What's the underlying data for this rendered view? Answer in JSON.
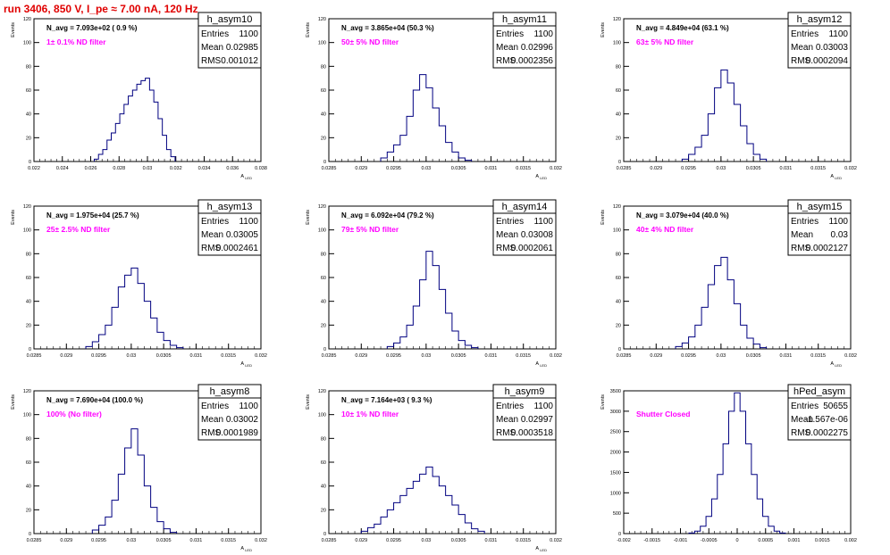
{
  "header": {
    "title": "run 3406,   850 V, I_pe ≈ 7.00 nA, 120 Hz"
  },
  "colors": {
    "title": "#e00000",
    "histogram": "#000080",
    "annotation": "#ff00ff",
    "axis": "#000000"
  },
  "chart_data": [
    {
      "type": "histogram",
      "name": "h_asym10",
      "nav_text": "N_avg = 7.093e+02 ( 0.9 %)",
      "annotation": "1± 0.1% ND filter",
      "stats": [
        {
          "label": "Entries",
          "value": "1100"
        },
        {
          "label": "Mean",
          "value": "0.02985"
        },
        {
          "label": "RMS",
          "value": "0.001012"
        }
      ],
      "xlabel": "A_LED",
      "ylabel": "Events",
      "xlim": [
        0.022,
        0.038
      ],
      "ylim": [
        0,
        120
      ],
      "xticks": [
        "0.022",
        "0.024",
        "0.026",
        "0.028",
        "0.03",
        "0.032",
        "0.034",
        "0.036",
        "0.038"
      ],
      "yticks": [
        "0",
        "20",
        "40",
        "60",
        "80",
        "100",
        "120"
      ],
      "x": [
        0.0264,
        0.0267,
        0.027,
        0.0273,
        0.0276,
        0.0279,
        0.0282,
        0.0285,
        0.0288,
        0.0291,
        0.0294,
        0.0297,
        0.03,
        0.0303,
        0.0306,
        0.0309,
        0.0312,
        0.0315,
        0.0318
      ],
      "values": [
        2,
        6,
        10,
        18,
        24,
        32,
        40,
        48,
        55,
        60,
        65,
        68,
        70,
        60,
        50,
        36,
        22,
        10,
        4
      ]
    },
    {
      "type": "histogram",
      "name": "h_asym11",
      "nav_text": "N_avg = 3.865e+04 (50.3 %)",
      "annotation": "50± 5% ND filter",
      "stats": [
        {
          "label": "Entries",
          "value": "1100"
        },
        {
          "label": "Mean",
          "value": "0.02996"
        },
        {
          "label": "RMS",
          "value": "0.0002356"
        }
      ],
      "xlabel": "A_LED",
      "ylabel": "Events",
      "xlim": [
        0.0285,
        0.032
      ],
      "ylim": [
        0,
        120
      ],
      "xticks": [
        "0.0285",
        "0.029",
        "0.0295",
        "0.03",
        "0.0305",
        "0.031",
        "0.0315",
        "0.032"
      ],
      "yticks": [
        "0",
        "20",
        "40",
        "60",
        "80",
        "100",
        "120"
      ],
      "x": [
        0.02935,
        0.02945,
        0.02955,
        0.02965,
        0.02975,
        0.02985,
        0.02995,
        0.03005,
        0.03015,
        0.03025,
        0.03035,
        0.03045,
        0.03055,
        0.03065
      ],
      "values": [
        3,
        8,
        14,
        22,
        38,
        60,
        73,
        62,
        45,
        30,
        16,
        8,
        3,
        1
      ]
    },
    {
      "type": "histogram",
      "name": "h_asym12",
      "nav_text": "N_avg = 4.849e+04 (63.1 %)",
      "annotation": "63± 5% ND filter",
      "stats": [
        {
          "label": "Entries",
          "value": "1100"
        },
        {
          "label": "Mean",
          "value": "0.03003"
        },
        {
          "label": "RMS",
          "value": "0.0002094"
        }
      ],
      "xlabel": "A_LED",
      "ylabel": "Events",
      "xlim": [
        0.0285,
        0.032
      ],
      "ylim": [
        0,
        120
      ],
      "xticks": [
        "0.0285",
        "0.029",
        "0.0295",
        "0.03",
        "0.0305",
        "0.031",
        "0.0315",
        "0.032"
      ],
      "yticks": [
        "0",
        "20",
        "40",
        "60",
        "80",
        "100",
        "120"
      ],
      "x": [
        0.02945,
        0.02955,
        0.02965,
        0.02975,
        0.02985,
        0.02995,
        0.03005,
        0.03015,
        0.03025,
        0.03035,
        0.03045,
        0.03055,
        0.03065
      ],
      "values": [
        2,
        6,
        12,
        22,
        40,
        62,
        77,
        66,
        48,
        30,
        15,
        6,
        2
      ]
    },
    {
      "type": "histogram",
      "name": "h_asym13",
      "nav_text": "N_avg = 1.975e+04 (25.7 %)",
      "annotation": "25± 2.5% ND filter",
      "stats": [
        {
          "label": "Entries",
          "value": "1100"
        },
        {
          "label": "Mean",
          "value": "0.03005"
        },
        {
          "label": "RMS",
          "value": "0.0002461"
        }
      ],
      "xlabel": "A_LED",
      "ylabel": "Events",
      "xlim": [
        0.0285,
        0.032
      ],
      "ylim": [
        0,
        120
      ],
      "xticks": [
        "0.0285",
        "0.029",
        "0.0295",
        "0.03",
        "0.0305",
        "0.031",
        "0.0315",
        "0.032"
      ],
      "yticks": [
        "0",
        "20",
        "40",
        "60",
        "80",
        "100",
        "120"
      ],
      "x": [
        0.02935,
        0.02945,
        0.02955,
        0.02965,
        0.02975,
        0.02985,
        0.02995,
        0.03005,
        0.03015,
        0.03025,
        0.03035,
        0.03045,
        0.03055,
        0.03065,
        0.03075
      ],
      "values": [
        2,
        6,
        12,
        20,
        35,
        52,
        62,
        68,
        55,
        40,
        26,
        14,
        7,
        3,
        1
      ]
    },
    {
      "type": "histogram",
      "name": "h_asym14",
      "nav_text": "N_avg = 6.092e+04 (79.2 %)",
      "annotation": "79± 5% ND filter",
      "stats": [
        {
          "label": "Entries",
          "value": "1100"
        },
        {
          "label": "Mean",
          "value": "0.03008"
        },
        {
          "label": "RMS",
          "value": "0.0002061"
        }
      ],
      "xlabel": "A_LED",
      "ylabel": "Events",
      "xlim": [
        0.0285,
        0.032
      ],
      "ylim": [
        0,
        120
      ],
      "xticks": [
        "0.0285",
        "0.029",
        "0.0295",
        "0.03",
        "0.0305",
        "0.031",
        "0.0315",
        "0.032"
      ],
      "yticks": [
        "0",
        "20",
        "40",
        "60",
        "80",
        "100",
        "120"
      ],
      "x": [
        0.02945,
        0.02955,
        0.02965,
        0.02975,
        0.02985,
        0.02995,
        0.03005,
        0.03015,
        0.03025,
        0.03035,
        0.03045,
        0.03055,
        0.03065,
        0.03075
      ],
      "values": [
        2,
        5,
        10,
        20,
        36,
        58,
        82,
        70,
        50,
        30,
        15,
        7,
        3,
        1
      ]
    },
    {
      "type": "histogram",
      "name": "h_asym15",
      "nav_text": "N_avg = 3.079e+04 (40.0 %)",
      "annotation": "40± 4% ND filter",
      "stats": [
        {
          "label": "Entries",
          "value": "1100"
        },
        {
          "label": "Mean",
          "value": "0.03"
        },
        {
          "label": "RMS",
          "value": "0.0002127"
        }
      ],
      "xlabel": "A_LED",
      "ylabel": "Events",
      "xlim": [
        0.0285,
        0.032
      ],
      "ylim": [
        0,
        120
      ],
      "xticks": [
        "0.0285",
        "0.029",
        "0.0295",
        "0.03",
        "0.0305",
        "0.031",
        "0.0315",
        "0.032"
      ],
      "yticks": [
        "0",
        "20",
        "40",
        "60",
        "80",
        "100",
        "120"
      ],
      "x": [
        0.02935,
        0.02945,
        0.02955,
        0.02965,
        0.02975,
        0.02985,
        0.02995,
        0.03005,
        0.03015,
        0.03025,
        0.03035,
        0.03045,
        0.03055,
        0.03065
      ],
      "values": [
        2,
        5,
        10,
        20,
        35,
        54,
        70,
        77,
        58,
        38,
        20,
        9,
        4,
        1
      ]
    },
    {
      "type": "histogram",
      "name": "h_asym8",
      "nav_text": "N_avg = 7.690e+04 (100.0 %)",
      "annotation": "100% (No filter)",
      "stats": [
        {
          "label": "Entries",
          "value": "1100"
        },
        {
          "label": "Mean",
          "value": "0.03002"
        },
        {
          "label": "RMS",
          "value": "0.0001989"
        }
      ],
      "xlabel": "A_LED",
      "ylabel": "Events",
      "xlim": [
        0.0285,
        0.032
      ],
      "ylim": [
        0,
        120
      ],
      "xticks": [
        "0.0285",
        "0.029",
        "0.0295",
        "0.03",
        "0.0305",
        "0.031",
        "0.0315",
        "0.032"
      ],
      "yticks": [
        "0",
        "20",
        "40",
        "60",
        "80",
        "100",
        "120"
      ],
      "x": [
        0.02945,
        0.02955,
        0.02965,
        0.02975,
        0.02985,
        0.02995,
        0.03005,
        0.03015,
        0.03025,
        0.03035,
        0.03045,
        0.03055,
        0.03065
      ],
      "values": [
        3,
        7,
        14,
        28,
        50,
        72,
        88,
        66,
        40,
        22,
        10,
        4,
        1
      ]
    },
    {
      "type": "histogram",
      "name": "h_asym9",
      "nav_text": "N_avg = 7.164e+03 ( 9.3 %)",
      "annotation": "10± 1% ND filter",
      "stats": [
        {
          "label": "Entries",
          "value": "1100"
        },
        {
          "label": "Mean",
          "value": "0.02997"
        },
        {
          "label": "RMS",
          "value": "0.0003518"
        }
      ],
      "xlabel": "A_LED",
      "ylabel": "Events",
      "xlim": [
        0.0285,
        0.032
      ],
      "ylim": [
        0,
        120
      ],
      "xticks": [
        "0.0285",
        "0.029",
        "0.0295",
        "0.03",
        "0.0305",
        "0.031",
        "0.0315",
        "0.032"
      ],
      "yticks": [
        "0",
        "20",
        "40",
        "60",
        "80",
        "100",
        "120"
      ],
      "x": [
        0.02905,
        0.02915,
        0.02925,
        0.02935,
        0.02945,
        0.02955,
        0.02965,
        0.02975,
        0.02985,
        0.02995,
        0.03005,
        0.03015,
        0.03025,
        0.03035,
        0.03045,
        0.03055,
        0.03065,
        0.03075,
        0.03085
      ],
      "values": [
        2,
        5,
        8,
        14,
        20,
        26,
        32,
        38,
        44,
        50,
        56,
        48,
        40,
        32,
        24,
        16,
        9,
        4,
        2
      ]
    },
    {
      "type": "histogram",
      "name": "hPed_asym",
      "nav_text": "",
      "annotation": "Shutter Closed",
      "stats": [
        {
          "label": "Entries",
          "value": "50655"
        },
        {
          "label": "Mean",
          "value": "-1.567e-06"
        },
        {
          "label": "RMS",
          "value": "0.0002275"
        }
      ],
      "xlabel": "",
      "ylabel": "Events",
      "xlim": [
        -0.002,
        0.002
      ],
      "ylim": [
        0,
        3500
      ],
      "xticks": [
        "-0.002",
        "-0.0015",
        "-0.001",
        "-0.0005",
        "0",
        "0.0005",
        "0.001",
        "0.0015",
        "0.002"
      ],
      "yticks": [
        "0",
        "500",
        "1000",
        "1500",
        "2000",
        "2500",
        "3000",
        "3500"
      ],
      "x": [
        -0.0008,
        -0.0007,
        -0.0006,
        -0.0005,
        -0.0004,
        -0.0003,
        -0.0002,
        -0.0001,
        0.0,
        0.0001,
        0.0002,
        0.0003,
        0.0004,
        0.0005,
        0.0006,
        0.0007,
        0.0008
      ],
      "values": [
        15,
        60,
        180,
        420,
        850,
        1450,
        2200,
        3000,
        3450,
        3000,
        2200,
        1450,
        850,
        420,
        180,
        60,
        15
      ]
    }
  ]
}
